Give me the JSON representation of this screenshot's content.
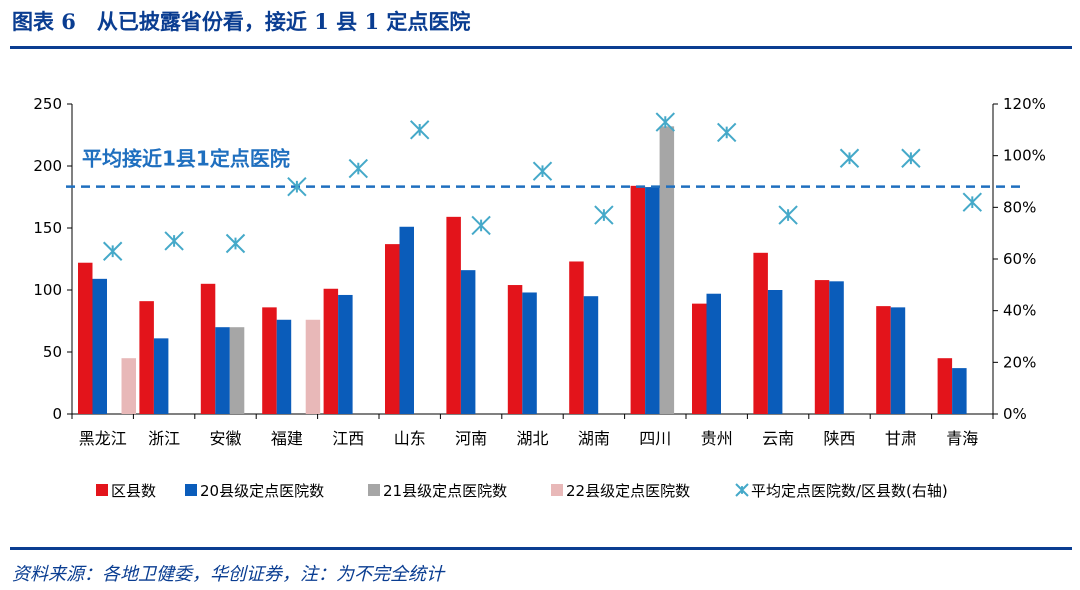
{
  "figure": {
    "title": "图表 6　从已披露省份看，接近 1 县 1 定点医院",
    "source": "资料来源：各地卫健委，华创证券，注：为不完全统计"
  },
  "colors": {
    "brand": "#0a3d91",
    "county": "#e3141b",
    "hosp20": "#0a5cba",
    "hosp21": "#a6a6a6",
    "hosp22": "#e8b8b8",
    "ratio": "#45a9c9",
    "refline": "#1f6fbf"
  },
  "chart_data": {
    "type": "bar",
    "categories": [
      "黑龙江",
      "浙江",
      "安徽",
      "福建",
      "江西",
      "山东",
      "河南",
      "湖北",
      "湖南",
      "四川",
      "贵州",
      "云南",
      "陕西",
      "甘肃",
      "青海"
    ],
    "series": [
      {
        "name": "区县数",
        "axis": "left",
        "values": [
          122,
          91,
          105,
          86,
          101,
          137,
          159,
          104,
          123,
          184,
          89,
          130,
          108,
          87,
          45
        ]
      },
      {
        "name": "20县级定点医院数",
        "axis": "left",
        "values": [
          109,
          61,
          70,
          76,
          96,
          151,
          116,
          98,
          95,
          183,
          97,
          100,
          107,
          86,
          37
        ]
      },
      {
        "name": "21县级定点医院数",
        "axis": "left",
        "values": [
          null,
          null,
          70,
          null,
          null,
          null,
          null,
          null,
          null,
          232,
          null,
          null,
          null,
          null,
          null
        ]
      },
      {
        "name": "22县级定点医院数",
        "axis": "left",
        "values": [
          45,
          null,
          null,
          76,
          null,
          null,
          null,
          null,
          null,
          null,
          null,
          null,
          null,
          null,
          null
        ]
      },
      {
        "name": "平均定点医院数/区县数(右轴)",
        "axis": "right",
        "type": "scatter",
        "values": [
          63,
          67,
          66,
          88,
          95,
          110,
          73,
          94,
          77,
          113,
          109,
          77,
          99,
          99,
          82
        ]
      }
    ],
    "left_axis": {
      "min": 0,
      "max": 250,
      "ticks": [
        "0",
        "50",
        "100",
        "150",
        "200",
        "250"
      ]
    },
    "right_axis": {
      "min": 0,
      "max": 120,
      "ticks": [
        "0%",
        "20%",
        "40%",
        "60%",
        "80%",
        "100%",
        "120%"
      ]
    },
    "reference_line": {
      "label": "平均接近1县1定点医院",
      "value": 88
    },
    "legend_position": "bottom"
  }
}
